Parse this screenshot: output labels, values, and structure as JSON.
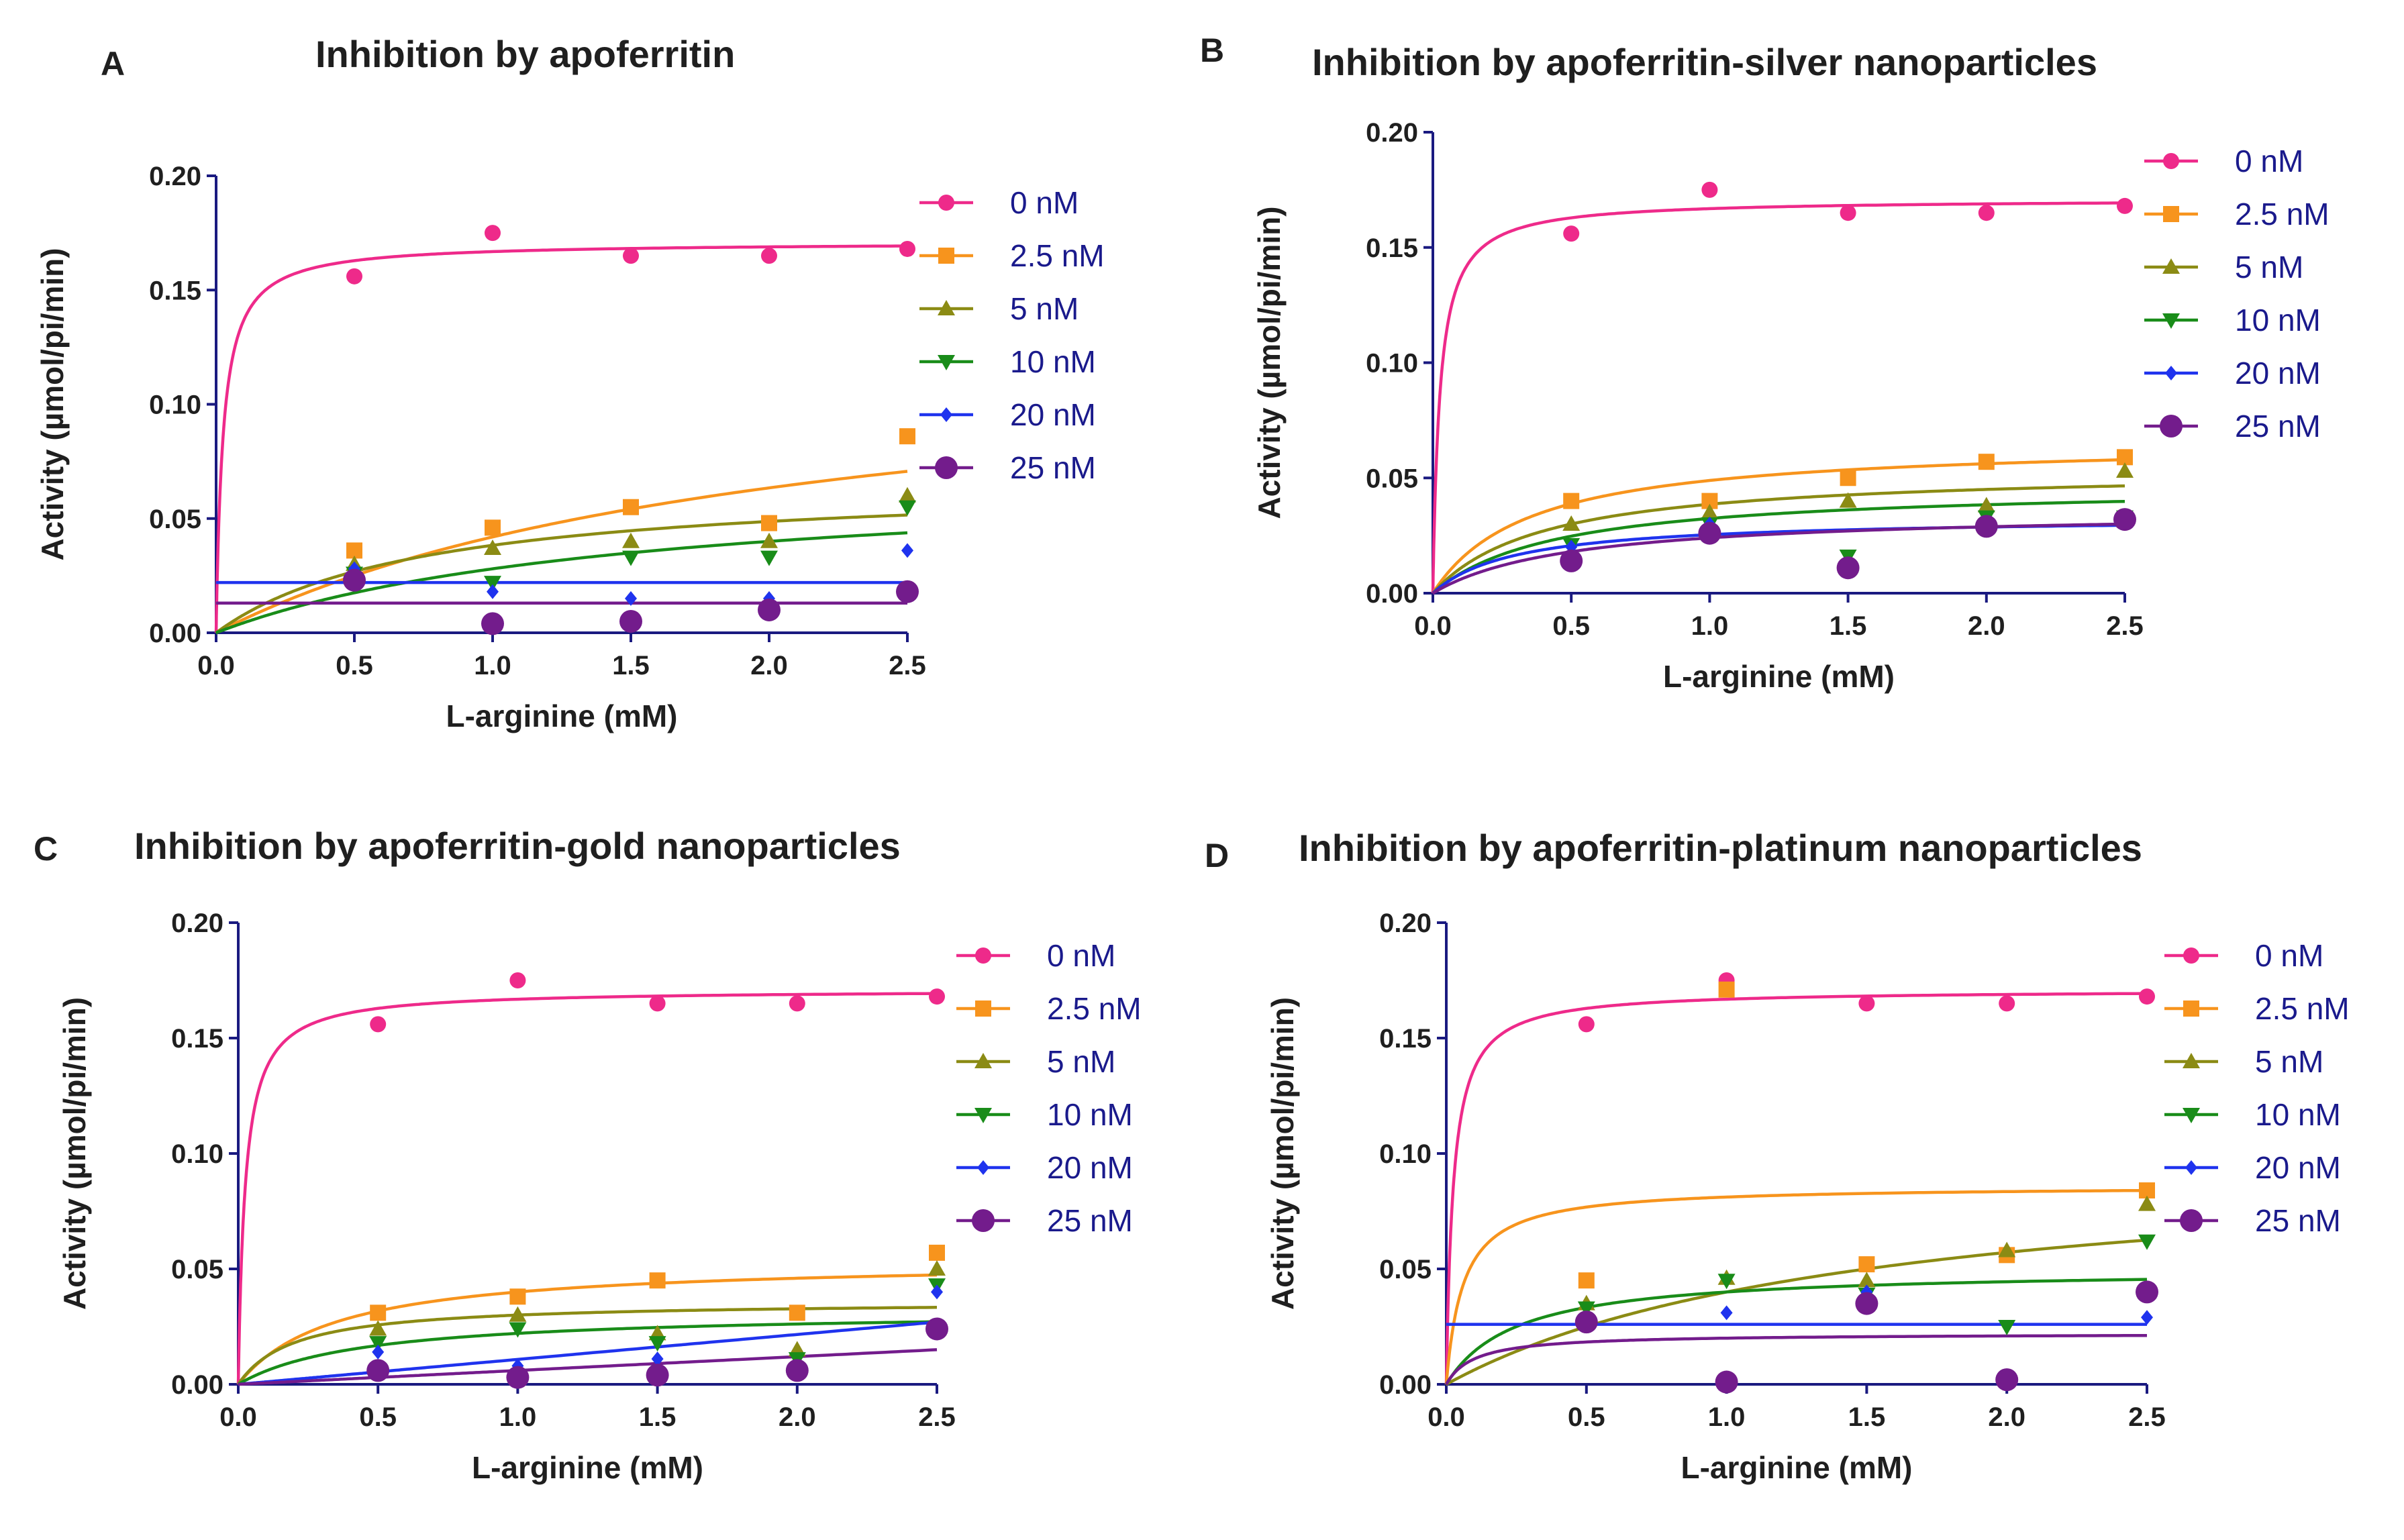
{
  "figure": {
    "panels_count": 4
  },
  "chart_data": [
    {
      "type": "scatter",
      "letter": "A",
      "title": "Inhibition by apoferritin",
      "xlabel": "L-arginine (mM)",
      "ylabel": "Activity (µmol/pi/min)",
      "xlim": [
        0,
        2.5
      ],
      "ylim": [
        0,
        0.2
      ],
      "xticks": [
        "0.0",
        "0.5",
        "1.0",
        "1.5",
        "2.0",
        "2.5"
      ],
      "yticks": [
        "0.00",
        "0.05",
        "0.10",
        "0.15",
        "0.20"
      ],
      "legend_position": "right",
      "series": [
        {
          "name": "0 nM",
          "color": "#ee2a8a",
          "marker": "circle",
          "x": [
            0.5,
            1.0,
            1.5,
            2.0,
            2.5
          ],
          "y": [
            0.156,
            0.175,
            0.165,
            0.165,
            0.168
          ],
          "fit": {
            "kind": "mm",
            "vmax": 0.171,
            "km": 0.025,
            "b": 0
          }
        },
        {
          "name": "2.5 nM",
          "color": "#f7941d",
          "marker": "square",
          "x": [
            0.5,
            1.0,
            1.5,
            2.0,
            2.5
          ],
          "y": [
            0.036,
            0.046,
            0.055,
            0.048,
            0.086
          ],
          "fit": {
            "kind": "mm",
            "vmax": 0.13,
            "km": 2.1,
            "b": 0
          }
        },
        {
          "name": "5 nM",
          "color": "#8b8b14",
          "marker": "triangle-up",
          "x": [
            0.5,
            1.0,
            1.5,
            2.0,
            2.5
          ],
          "y": [
            0.03,
            0.037,
            0.04,
            0.04,
            0.06
          ],
          "fit": {
            "kind": "mm",
            "vmax": 0.067,
            "km": 0.75,
            "b": 0
          }
        },
        {
          "name": "10 nM",
          "color": "#198c19",
          "marker": "triangle-down",
          "x": [
            0.5,
            1.0,
            1.5,
            2.0,
            2.5
          ],
          "y": [
            0.026,
            0.022,
            0.033,
            0.033,
            0.055
          ],
          "fit": {
            "kind": "mm",
            "vmax": 0.07,
            "km": 1.5,
            "b": 0
          }
        },
        {
          "name": "20 nM",
          "color": "#1f33ee",
          "marker": "diamond",
          "x": [
            0.5,
            1.0,
            1.5,
            2.0,
            2.5
          ],
          "y": [
            0.028,
            0.018,
            0.015,
            0.015,
            0.036
          ],
          "fit": {
            "kind": "const",
            "b": 0.022
          }
        },
        {
          "name": "25 nM",
          "color": "#731c8c",
          "marker": "circle-big",
          "x": [
            0.5,
            1.0,
            1.5,
            2.0,
            2.5
          ],
          "y": [
            0.023,
            0.004,
            0.005,
            0.01,
            0.018
          ],
          "fit": {
            "kind": "const",
            "b": 0.013
          }
        }
      ]
    },
    {
      "type": "scatter",
      "letter": "B",
      "title": "Inhibition by apoferritin-silver nanoparticles",
      "xlabel": "L-arginine (mM)",
      "ylabel": "Activity (µmol/pi/min)",
      "xlim": [
        0,
        2.5
      ],
      "ylim": [
        0,
        0.2
      ],
      "xticks": [
        "0.0",
        "0.5",
        "1.0",
        "1.5",
        "2.0",
        "2.5"
      ],
      "yticks": [
        "0.00",
        "0.05",
        "0.10",
        "0.15",
        "0.20"
      ],
      "legend_position": "right",
      "series": [
        {
          "name": "0 nM",
          "color": "#ee2a8a",
          "marker": "circle",
          "x": [
            0.5,
            1.0,
            1.5,
            2.0,
            2.5
          ],
          "y": [
            0.156,
            0.175,
            0.165,
            0.165,
            0.168
          ],
          "fit": {
            "kind": "mm",
            "vmax": 0.171,
            "km": 0.025,
            "b": 0
          }
        },
        {
          "name": "2.5 nM",
          "color": "#f7941d",
          "marker": "square",
          "x": [
            0.5,
            1.0,
            1.5,
            2.0,
            2.5
          ],
          "y": [
            0.04,
            0.04,
            0.05,
            0.057,
            0.059
          ],
          "fit": {
            "kind": "mm",
            "vmax": 0.066,
            "km": 0.35,
            "b": 0
          }
        },
        {
          "name": "5 nM",
          "color": "#8b8b14",
          "marker": "triangle-up",
          "x": [
            0.5,
            1.0,
            1.5,
            2.0,
            2.5
          ],
          "y": [
            0.03,
            0.035,
            0.04,
            0.038,
            0.053
          ],
          "fit": {
            "kind": "mm",
            "vmax": 0.054,
            "km": 0.4,
            "b": 0
          }
        },
        {
          "name": "10 nM",
          "color": "#198c19",
          "marker": "triangle-down",
          "x": [
            0.5,
            1.0,
            1.5,
            2.0,
            2.5
          ],
          "y": [
            0.021,
            0.03,
            0.016,
            0.033,
            0.033
          ],
          "fit": {
            "kind": "mm",
            "vmax": 0.047,
            "km": 0.45,
            "b": 0
          }
        },
        {
          "name": "20 nM",
          "color": "#1f33ee",
          "marker": "diamond",
          "x": [
            0.5,
            1.0,
            1.5,
            2.0,
            2.5
          ],
          "y": [
            0.02,
            0.03,
            0.012,
            0.03,
            0.033
          ],
          "fit": {
            "kind": "mm",
            "vmax": 0.033,
            "km": 0.3,
            "b": 0
          }
        },
        {
          "name": "25 nM",
          "color": "#731c8c",
          "marker": "circle-big",
          "x": [
            0.5,
            1.0,
            1.5,
            2.0,
            2.5
          ],
          "y": [
            0.014,
            0.026,
            0.011,
            0.029,
            0.032
          ],
          "fit": {
            "kind": "mm",
            "vmax": 0.036,
            "km": 0.5,
            "b": 0
          }
        }
      ]
    },
    {
      "type": "scatter",
      "letter": "C",
      "title": "Inhibition by apoferritin-gold nanoparticles",
      "xlabel": "L-arginine (mM)",
      "ylabel": "Activity (µmol/pi/min)",
      "xlim": [
        0,
        2.5
      ],
      "ylim": [
        0,
        0.2
      ],
      "xticks": [
        "0.0",
        "0.5",
        "1.0",
        "1.5",
        "2.0",
        "2.5"
      ],
      "yticks": [
        "0.00",
        "0.05",
        "0.10",
        "0.15",
        "0.20"
      ],
      "legend_position": "right",
      "series": [
        {
          "name": "0 nM",
          "color": "#ee2a8a",
          "marker": "circle",
          "x": [
            0.5,
            1.0,
            1.5,
            2.0,
            2.5
          ],
          "y": [
            0.156,
            0.175,
            0.165,
            0.165,
            0.168
          ],
          "fit": {
            "kind": "mm",
            "vmax": 0.171,
            "km": 0.025,
            "b": 0
          }
        },
        {
          "name": "2.5 nM",
          "color": "#f7941d",
          "marker": "square",
          "x": [
            0.5,
            1.0,
            1.5,
            2.0,
            2.5
          ],
          "y": [
            0.031,
            0.038,
            0.045,
            0.031,
            0.057
          ],
          "fit": {
            "kind": "mm",
            "vmax": 0.054,
            "km": 0.35,
            "b": 0
          }
        },
        {
          "name": "5 nM",
          "color": "#8b8b14",
          "marker": "triangle-up",
          "x": [
            0.5,
            1.0,
            1.5,
            2.0,
            2.5
          ],
          "y": [
            0.024,
            0.03,
            0.022,
            0.015,
            0.05
          ],
          "fit": {
            "kind": "mm",
            "vmax": 0.036,
            "km": 0.2,
            "b": 0
          }
        },
        {
          "name": "10 nM",
          "color": "#198c19",
          "marker": "triangle-down",
          "x": [
            0.5,
            1.0,
            1.5,
            2.0,
            2.5
          ],
          "y": [
            0.018,
            0.024,
            0.018,
            0.011,
            0.043
          ],
          "fit": {
            "kind": "mm",
            "vmax": 0.032,
            "km": 0.45,
            "b": 0
          }
        },
        {
          "name": "20 nM",
          "color": "#1f33ee",
          "marker": "diamond",
          "x": [
            0.5,
            1.0,
            1.5,
            2.0,
            2.5
          ],
          "y": [
            0.014,
            0.008,
            0.011,
            0.007,
            0.04
          ],
          "fit": {
            "kind": "lin",
            "slope": 0.0108,
            "b": 0
          }
        },
        {
          "name": "25 nM",
          "color": "#731c8c",
          "marker": "circle-big",
          "x": [
            0.5,
            1.0,
            1.5,
            2.0,
            2.5
          ],
          "y": [
            0.006,
            0.003,
            0.004,
            0.006,
            0.024
          ],
          "fit": {
            "kind": "lin",
            "slope": 0.006,
            "b": 0
          }
        }
      ]
    },
    {
      "type": "scatter",
      "letter": "D",
      "title": "Inhibition by apoferritin-platinum nanoparticles",
      "xlabel": "L-arginine (mM)",
      "ylabel": "Activity (µmol/pi/min)",
      "xlim": [
        0,
        2.5
      ],
      "ylim": [
        0,
        0.2
      ],
      "xticks": [
        "0.0",
        "0.5",
        "1.0",
        "1.5",
        "2.0",
        "2.5"
      ],
      "yticks": [
        "0.00",
        "0.05",
        "0.10",
        "0.15",
        "0.20"
      ],
      "legend_position": "right",
      "series": [
        {
          "name": "0 nM",
          "color": "#ee2a8a",
          "marker": "circle",
          "x": [
            0.5,
            1.0,
            1.5,
            2.0,
            2.5
          ],
          "y": [
            0.156,
            0.175,
            0.165,
            0.165,
            0.168
          ],
          "fit": {
            "kind": "mm",
            "vmax": 0.171,
            "km": 0.025,
            "b": 0
          }
        },
        {
          "name": "2.5 nM",
          "color": "#f7941d",
          "marker": "square",
          "x": [
            0.5,
            1.0,
            1.5,
            2.0,
            2.5
          ],
          "y": [
            0.045,
            0.171,
            0.052,
            0.056,
            0.084
          ],
          "fit": {
            "kind": "mm",
            "vmax": 0.086,
            "km": 0.06,
            "b": 0
          }
        },
        {
          "name": "5 nM",
          "color": "#8b8b14",
          "marker": "triangle-up",
          "x": [
            0.5,
            1.0,
            1.5,
            2.0,
            2.5
          ],
          "y": [
            0.035,
            0.046,
            0.045,
            0.058,
            0.078
          ],
          "fit": {
            "kind": "mm",
            "vmax": 0.1,
            "km": 1.5,
            "b": 0
          }
        },
        {
          "name": "10 nM",
          "color": "#198c19",
          "marker": "triangle-down",
          "x": [
            0.5,
            1.0,
            1.5,
            2.0,
            2.5
          ],
          "y": [
            0.033,
            0.045,
            0.039,
            0.025,
            0.062
          ],
          "fit": {
            "kind": "mm",
            "vmax": 0.05,
            "km": 0.25,
            "b": 0
          }
        },
        {
          "name": "20 nM",
          "color": "#1f33ee",
          "marker": "diamond",
          "x": [
            0.5,
            1.0,
            1.5,
            2.0,
            2.5
          ],
          "y": [
            0.027,
            0.031,
            0.04,
            0.003,
            0.029
          ],
          "fit": {
            "kind": "const",
            "b": 0.026
          }
        },
        {
          "name": "25 nM",
          "color": "#731c8c",
          "marker": "circle-big",
          "x": [
            0.5,
            1.0,
            1.5,
            2.0,
            2.5
          ],
          "y": [
            0.027,
            0.001,
            0.035,
            0.002,
            0.04
          ],
          "fit": {
            "kind": "mm",
            "vmax": 0.022,
            "km": 0.1,
            "b": 0
          }
        }
      ]
    }
  ]
}
